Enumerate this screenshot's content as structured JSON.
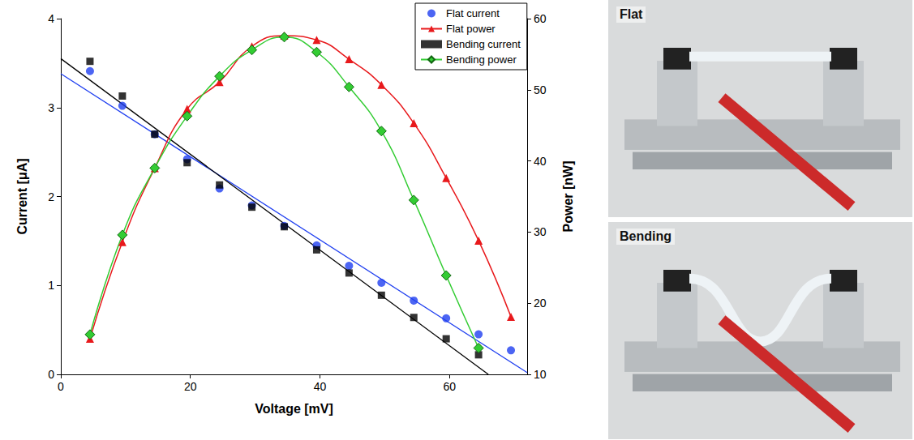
{
  "chart_data": {
    "type": "line",
    "x_label": "Voltage [mV]",
    "y_label": "Current [μA]",
    "y2_label": "Power [nW]",
    "xlim": [
      0,
      72
    ],
    "xticks": [
      0,
      20,
      40,
      60
    ],
    "ylim": [
      0,
      4
    ],
    "yticks": [
      0,
      1,
      2,
      3,
      4
    ],
    "y2lim": [
      10,
      60
    ],
    "y2ticks": [
      10,
      20,
      30,
      40,
      50,
      60
    ],
    "grid": false,
    "legend": "upper right",
    "x": [
      4.5,
      9.5,
      14.5,
      19.5,
      24.5,
      29.5,
      34.5,
      39.5,
      44.5,
      49.5,
      54.5,
      59.5,
      64.5,
      69.5
    ],
    "series": [
      {
        "name": "Flat current",
        "type": "scatter",
        "marker": "circle",
        "color": "#1f3ff0",
        "axis": "y",
        "values": [
          3.41,
          3.02,
          2.7,
          2.42,
          2.09,
          1.9,
          1.67,
          1.45,
          1.22,
          1.03,
          0.83,
          0.63,
          0.45,
          0.27
        ],
        "fit": {
          "x": [
            0,
            72
          ],
          "values": [
            3.38,
            0.02
          ]
        }
      },
      {
        "name": "Flat power",
        "type": "line",
        "marker": "triangle",
        "color": "#e8191c",
        "axis": "y2",
        "values": [
          15.0,
          28.6,
          39.0,
          47.3,
          51.1,
          56.1,
          57.6,
          57.0,
          54.3,
          50.7,
          45.3,
          37.6,
          28.8,
          18.1
        ]
      },
      {
        "name": "Bending current",
        "type": "scatter",
        "marker": "square",
        "color": "#000000",
        "axis": "y",
        "values": [
          3.52,
          3.13,
          2.7,
          2.38,
          2.13,
          1.88,
          1.66,
          1.4,
          1.14,
          0.89,
          0.64,
          0.4,
          0.22,
          null
        ],
        "fit": {
          "x": [
            0,
            66
          ],
          "values": [
            3.55,
            0
          ]
        }
      },
      {
        "name": "Bending power",
        "type": "line",
        "marker": "diamond",
        "color": "#33cc33",
        "axis": "y2",
        "values": [
          15.6,
          29.6,
          39.0,
          46.3,
          51.9,
          55.6,
          57.4,
          55.3,
          50.4,
          44.2,
          34.5,
          23.9,
          13.7,
          null
        ]
      }
    ]
  },
  "photos": [
    {
      "label": "Flat"
    },
    {
      "label": "Bending"
    }
  ]
}
